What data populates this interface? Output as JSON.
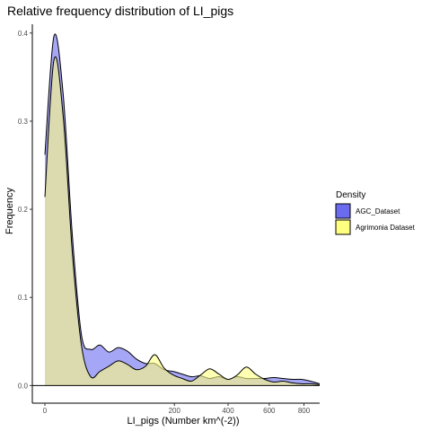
{
  "chart_data": {
    "type": "area",
    "title": "Relative frequency distribution of LI_pigs",
    "xlabel": "LI_pigs (Number km^(-2))",
    "ylabel": "Frequency",
    "x_scale": "sqrt",
    "xlim": [
      0,
      900
    ],
    "ylim": [
      -0.02,
      0.41
    ],
    "x_ticks": [
      0,
      200,
      400,
      600,
      800
    ],
    "y_ticks": [
      0.0,
      0.1,
      0.2,
      0.3,
      0.4
    ],
    "y_tick_labels": [
      "0.0",
      "0.1",
      "0.2",
      "0.3",
      "0.4"
    ],
    "grid": false,
    "legend_position": "right",
    "legend_title": "Density",
    "series": [
      {
        "name": "AGC_Dataset",
        "color": "#6b6bf0",
        "x": [
          0,
          1,
          4,
          9,
          16,
          25,
          36,
          49,
          64,
          81,
          100,
          121,
          144,
          169,
          196,
          225,
          256,
          289,
          324,
          361,
          400,
          441,
          484,
          529,
          576,
          625,
          676,
          729,
          784,
          841,
          900
        ],
        "y": [
          0.262,
          0.397,
          0.33,
          0.17,
          0.057,
          0.041,
          0.046,
          0.038,
          0.043,
          0.039,
          0.03,
          0.025,
          0.025,
          0.018,
          0.016,
          0.013,
          0.01,
          0.011,
          0.008,
          0.01,
          0.007,
          0.01,
          0.008,
          0.008,
          0.008,
          0.009,
          0.008,
          0.007,
          0.007,
          0.005,
          0.002
        ]
      },
      {
        "name": "Agrimonia Dataset",
        "color": "#ffff80",
        "x": [
          0,
          1,
          4,
          9,
          16,
          25,
          36,
          49,
          64,
          81,
          100,
          121,
          144,
          169,
          196,
          225,
          256,
          289,
          324,
          361,
          400,
          441,
          484,
          529,
          576,
          625,
          676,
          729,
          784,
          841,
          900
        ],
        "y": [
          0.214,
          0.37,
          0.305,
          0.15,
          0.045,
          0.01,
          0.016,
          0.022,
          0.028,
          0.024,
          0.018,
          0.022,
          0.035,
          0.02,
          0.012,
          0.008,
          0.005,
          0.012,
          0.019,
          0.013,
          0.007,
          0.012,
          0.021,
          0.013,
          0.007,
          0.004,
          0.005,
          0.003,
          0.002,
          0.002,
          0.001
        ]
      }
    ]
  }
}
